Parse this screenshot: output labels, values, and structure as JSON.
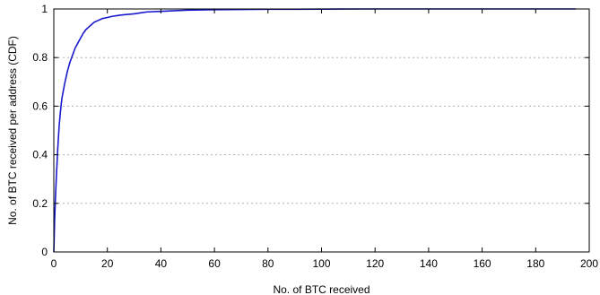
{
  "chart_data": {
    "type": "line",
    "title": "",
    "xlabel": "No. of BTC received",
    "ylabel": "No. of BTC received per address (CDF)",
    "xlim": [
      0,
      200
    ],
    "ylim": [
      0,
      1
    ],
    "x_ticks": [
      0,
      20,
      40,
      60,
      80,
      100,
      120,
      140,
      160,
      180,
      200
    ],
    "y_ticks": [
      0,
      0.2,
      0.4,
      0.6,
      0.8,
      1
    ],
    "x_tick_labels": [
      "0",
      "20",
      "40",
      "60",
      "80",
      "100",
      "120",
      "140",
      "160",
      "180",
      "200"
    ],
    "y_tick_labels": [
      "0",
      "0.2",
      "0.4",
      "0.6",
      "0.8",
      "1"
    ],
    "grid": {
      "y": true,
      "x": false
    },
    "legend": "none",
    "series": [
      {
        "color": "#1a1acc",
        "x": [
          0,
          0.3,
          0.6,
          1,
          1.5,
          2,
          2.5,
          3,
          3.5,
          4,
          5,
          6,
          7,
          8,
          9,
          10,
          11,
          12,
          13,
          14,
          15,
          16,
          18,
          20,
          22,
          25,
          28,
          30,
          33,
          35,
          40,
          45,
          50,
          55,
          60,
          70,
          80,
          90,
          100,
          120,
          140,
          160,
          180,
          195
        ],
        "y": [
          0,
          0.13,
          0.22,
          0.32,
          0.43,
          0.52,
          0.58,
          0.63,
          0.66,
          0.69,
          0.74,
          0.78,
          0.81,
          0.84,
          0.86,
          0.88,
          0.9,
          0.915,
          0.925,
          0.935,
          0.945,
          0.95,
          0.96,
          0.965,
          0.97,
          0.975,
          0.978,
          0.98,
          0.985,
          0.988,
          0.99,
          0.993,
          0.995,
          0.996,
          0.997,
          0.998,
          0.999,
          0.999,
          0.9995,
          1,
          1,
          1,
          1,
          1
        ]
      }
    ]
  }
}
